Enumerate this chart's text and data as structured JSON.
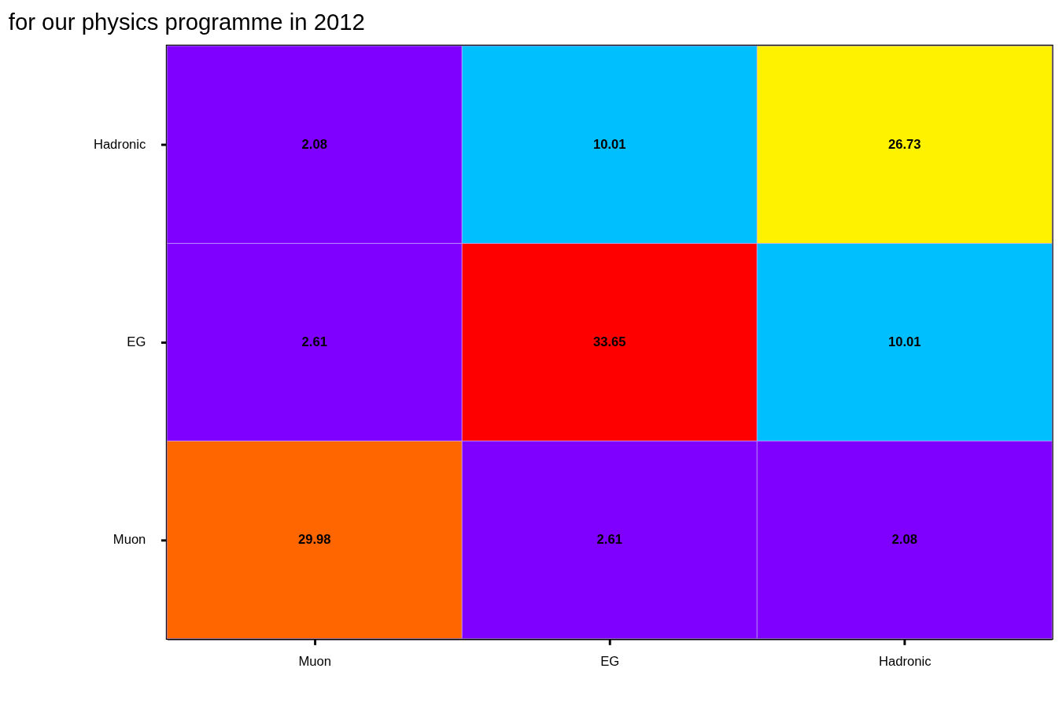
{
  "chart_data": {
    "type": "heatmap",
    "title": "for our physics programme in 2012",
    "categories": [
      "Muon",
      "EG",
      "Hadronic"
    ],
    "y_categories": [
      "Hadronic",
      "EG",
      "Muon"
    ],
    "cells": [
      [
        2.08,
        10.01,
        26.73
      ],
      [
        2.61,
        33.65,
        10.01
      ],
      [
        29.98,
        2.61,
        2.08
      ]
    ],
    "colors": [
      [
        "#7f00ff",
        "#00bfff",
        "#fff200"
      ],
      [
        "#7f00ff",
        "#ff0000",
        "#00bfff"
      ],
      [
        "#ff6600",
        "#7f00ff",
        "#7f00ff"
      ]
    ],
    "data_labels": true
  }
}
